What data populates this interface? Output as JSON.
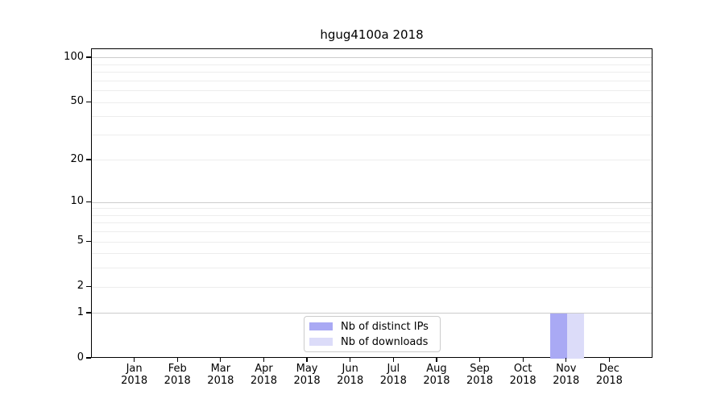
{
  "chart_data": {
    "type": "bar",
    "title": "hgug4100a 2018",
    "months": [
      "Jan",
      "Feb",
      "Mar",
      "Apr",
      "May",
      "Jun",
      "Jul",
      "Aug",
      "Sep",
      "Oct",
      "Nov",
      "Dec"
    ],
    "year": "2018",
    "series": [
      {
        "name": "Nb of distinct IPs",
        "color": "#a9a9f4",
        "values": [
          0,
          0,
          0,
          0,
          0,
          0,
          0,
          0,
          0,
          0,
          1,
          0
        ]
      },
      {
        "name": "Nb of downloads",
        "color": "#dcdcf9",
        "values": [
          0,
          0,
          0,
          0,
          0,
          0,
          0,
          0,
          0,
          0,
          1,
          0
        ]
      }
    ],
    "yscale": "log1p",
    "ylim": [
      0,
      114.7
    ],
    "yticks": [
      0,
      1,
      2,
      5,
      10,
      20,
      50,
      100
    ],
    "minor_gridlines": [
      2,
      3,
      4,
      5,
      6,
      7,
      8,
      9,
      20,
      30,
      40,
      50,
      60,
      70,
      80,
      90
    ],
    "major_gridlines": [
      1,
      10,
      100
    ],
    "grid": true,
    "legend_position": "lower center",
    "colors": {
      "minor_grid": "#ededed",
      "major_grid": "#cccccc",
      "spine": "#000000",
      "text": "#000000",
      "background": "#ffffff"
    }
  }
}
